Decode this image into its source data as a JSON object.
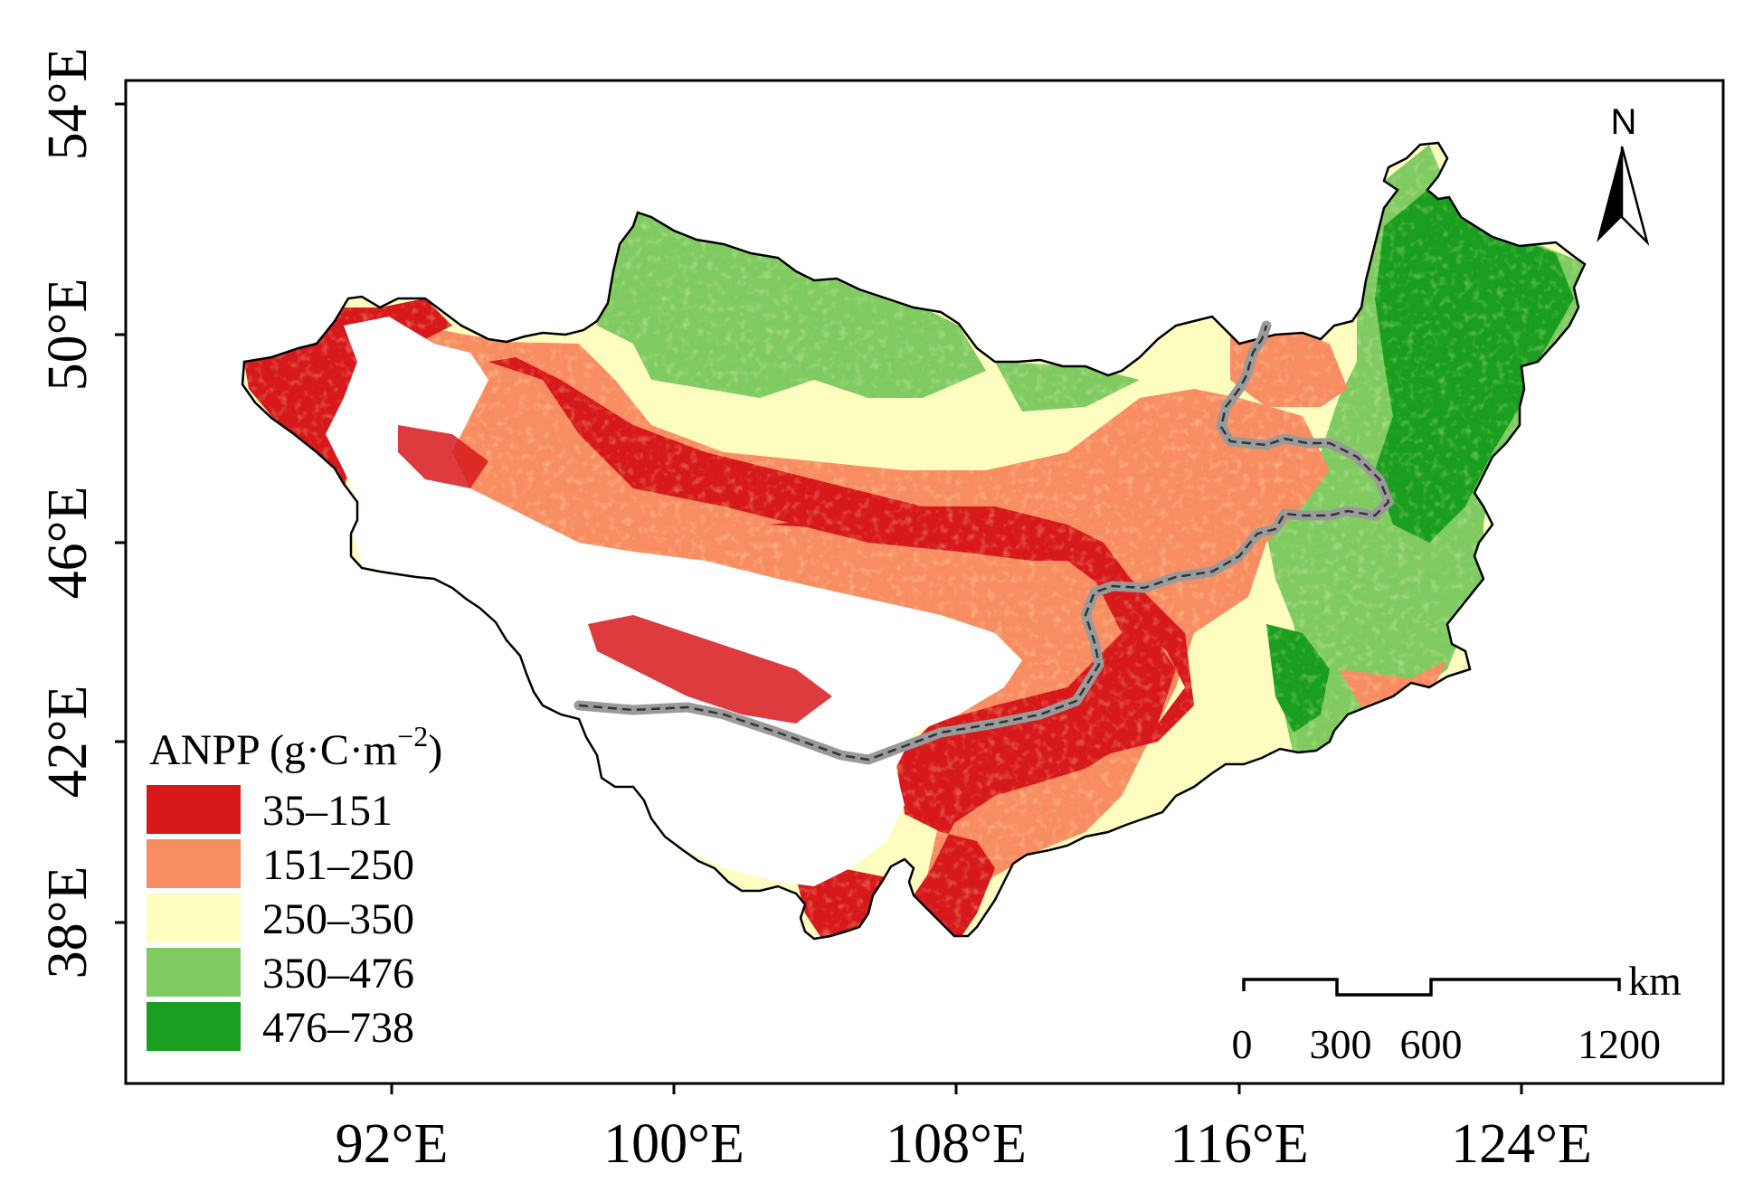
{
  "map": {
    "x_ticks": [
      "92°E",
      "100°E",
      "108°E",
      "116°E",
      "124°E"
    ],
    "y_ticks": [
      "54°E",
      "50°E",
      "46°E",
      "42°E",
      "38°E"
    ],
    "legend": {
      "title_main": "ANPP (g·C·m",
      "title_exp": "−2",
      "title_close": ")",
      "items": [
        {
          "label": "35–151",
          "color": "#d7191c"
        },
        {
          "label": "151–250",
          "color": "#f88d62"
        },
        {
          "label": "250–350",
          "color": "#fdfdc0"
        },
        {
          "label": "350–476",
          "color": "#7fcb62"
        },
        {
          "label": "476–738",
          "color": "#1a9e1f"
        }
      ]
    },
    "north_arrow": {
      "label": "N",
      "icon": "north-arrow-icon"
    },
    "scale_bar": {
      "unit": "km",
      "ticks": [
        "0",
        "300",
        "600",
        "1200"
      ]
    },
    "colors": {
      "no_data": "#ffffff",
      "boundary": "#000000",
      "border_line": "#9a9a9a"
    }
  }
}
